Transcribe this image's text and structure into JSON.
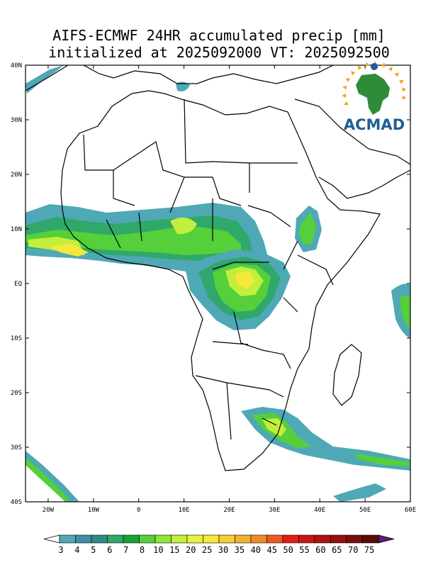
{
  "title": {
    "line1": "AIFS-ECMWF 24HR accumulated precip [mm]",
    "line2": "initialized at 2025092000 VT: 2025092500"
  },
  "logo": {
    "text": "ACMAD",
    "icon": "africa-sun-logo-icon"
  },
  "axes": {
    "lat_labels": [
      "40N",
      "30N",
      "20N",
      "10N",
      "EQ",
      "10S",
      "20S",
      "30S",
      "40S"
    ],
    "lat_values": [
      40,
      30,
      20,
      10,
      0,
      -10,
      -20,
      -30,
      -40
    ],
    "lon_labels": [
      "20W",
      "10W",
      "0",
      "10E",
      "20E",
      "30E",
      "40E",
      "50E",
      "60E"
    ],
    "lon_values": [
      -20,
      -10,
      0,
      10,
      20,
      30,
      40,
      50,
      60
    ],
    "lon_range": [
      -25,
      60
    ],
    "lat_range": [
      -40,
      40
    ]
  },
  "colorbar": {
    "labels": [
      "3",
      "4",
      "5",
      "6",
      "7",
      "8",
      "10",
      "15",
      "20",
      "25",
      "30",
      "35",
      "40",
      "45",
      "50",
      "55",
      "60",
      "65",
      "70",
      "75"
    ],
    "colors": [
      "#4fa8b5",
      "#3e8fa6",
      "#2f8a86",
      "#2fa86a",
      "#19a234",
      "#55cf3a",
      "#8ee63a",
      "#c2ee3c",
      "#e6f23c",
      "#f5e83a",
      "#f4cf33",
      "#f2b02c",
      "#f08a24",
      "#ee5a1d",
      "#e61d16",
      "#cc1414",
      "#b01212",
      "#941010",
      "#770e0e",
      "#5a0c0c",
      "#5a1d7a"
    ]
  },
  "colors": {
    "light": "#4fa8b5",
    "mid": "#2fa86a",
    "green": "#55cf3a",
    "lime": "#c2ee3c",
    "yellow": "#f5e83a"
  }
}
